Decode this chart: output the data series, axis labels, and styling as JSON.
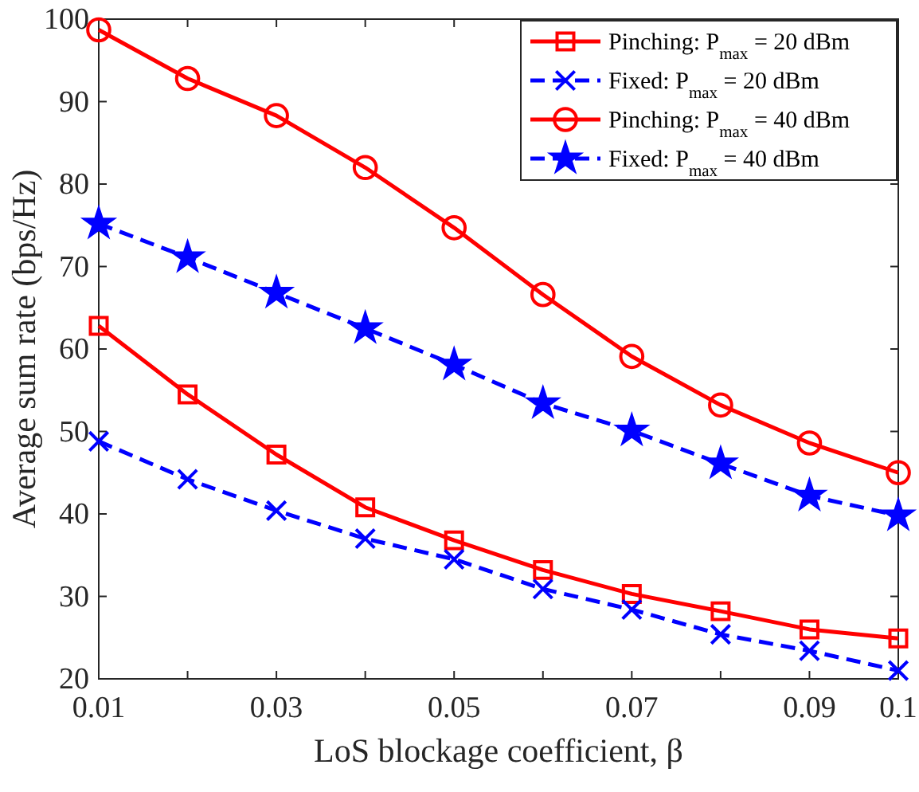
{
  "chart_data": {
    "type": "line",
    "xlabel": "LoS blockage coefficient, β",
    "ylabel": "Average sum rate (bps/Hz)",
    "x": [
      0.01,
      0.02,
      0.03,
      0.04,
      0.05,
      0.06,
      0.07,
      0.08,
      0.09,
      0.1
    ],
    "xlim": [
      0.01,
      0.1
    ],
    "xticks": [
      0.01,
      {
        "value": 0.02,
        "label": null
      },
      0.03,
      {
        "value": 0.04,
        "label": null
      },
      0.05,
      {
        "value": 0.06,
        "label": null
      },
      0.07,
      {
        "value": 0.08,
        "label": null
      },
      0.09,
      0.1
    ],
    "ylim": [
      20,
      100
    ],
    "yticks": [
      20,
      30,
      40,
      50,
      60,
      70,
      80,
      90,
      100
    ],
    "grid": false,
    "legend": "top right",
    "series": [
      {
        "name": "Pinching: P$_{max}$ = 20 dBm",
        "color": "#ff0000",
        "marker": "square",
        "line_style": "solid",
        "values": [
          62.8,
          54.5,
          47.2,
          40.8,
          36.8,
          33.2,
          30.3,
          28.2,
          26.0,
          24.9
        ]
      },
      {
        "name": "Fixed: P$_{max}$ = 20 dBm",
        "color": "#0000ff",
        "marker": "cross",
        "line_style": "dashed",
        "values": [
          48.8,
          44.2,
          40.4,
          37.0,
          34.5,
          30.9,
          28.4,
          25.4,
          23.4,
          21.0
        ]
      },
      {
        "name": "Pinching: P$_{max}$ = 40 dBm",
        "color": "#ff0000",
        "marker": "circle",
        "line_style": "solid",
        "values": [
          98.7,
          92.8,
          88.3,
          82.0,
          74.7,
          66.6,
          59.1,
          53.2,
          48.6,
          45.0
        ]
      },
      {
        "name": "Fixed: P$_{max}$ = 40 dBm",
        "color": "#0000ff",
        "marker": "star",
        "line_style": "dashed",
        "values": [
          75.2,
          71.1,
          66.8,
          62.5,
          58.1,
          53.4,
          50.1,
          46.1,
          42.2,
          39.8
        ]
      }
    ]
  }
}
